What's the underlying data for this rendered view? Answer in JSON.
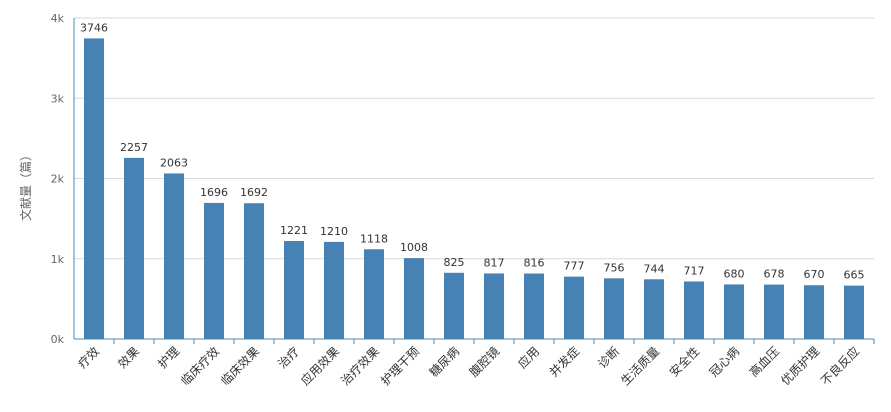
{
  "chart_data": {
    "type": "bar",
    "title": "",
    "xlabel": "",
    "ylabel": "文献量（篇）",
    "ylim": [
      0,
      4000
    ],
    "yticks": [
      0,
      1000,
      2000,
      3000,
      4000
    ],
    "ytick_labels": [
      "0k",
      "1k",
      "2k",
      "3k",
      "4k"
    ],
    "grid": true,
    "bar_color": "#4682b4",
    "categories": [
      "疗效",
      "效果",
      "护理",
      "临床疗效",
      "临床效果",
      "治疗",
      "应用效果",
      "治疗效果",
      "护理干预",
      "糖尿病",
      "腹腔镜",
      "应用",
      "并发症",
      "诊断",
      "生活质量",
      "安全性",
      "冠心病",
      "高血压",
      "优质护理",
      "不良反应"
    ],
    "values": [
      3746,
      2257,
      2063,
      1696,
      1692,
      1221,
      1210,
      1118,
      1008,
      825,
      817,
      816,
      777,
      756,
      744,
      717,
      680,
      678,
      670,
      665
    ]
  }
}
